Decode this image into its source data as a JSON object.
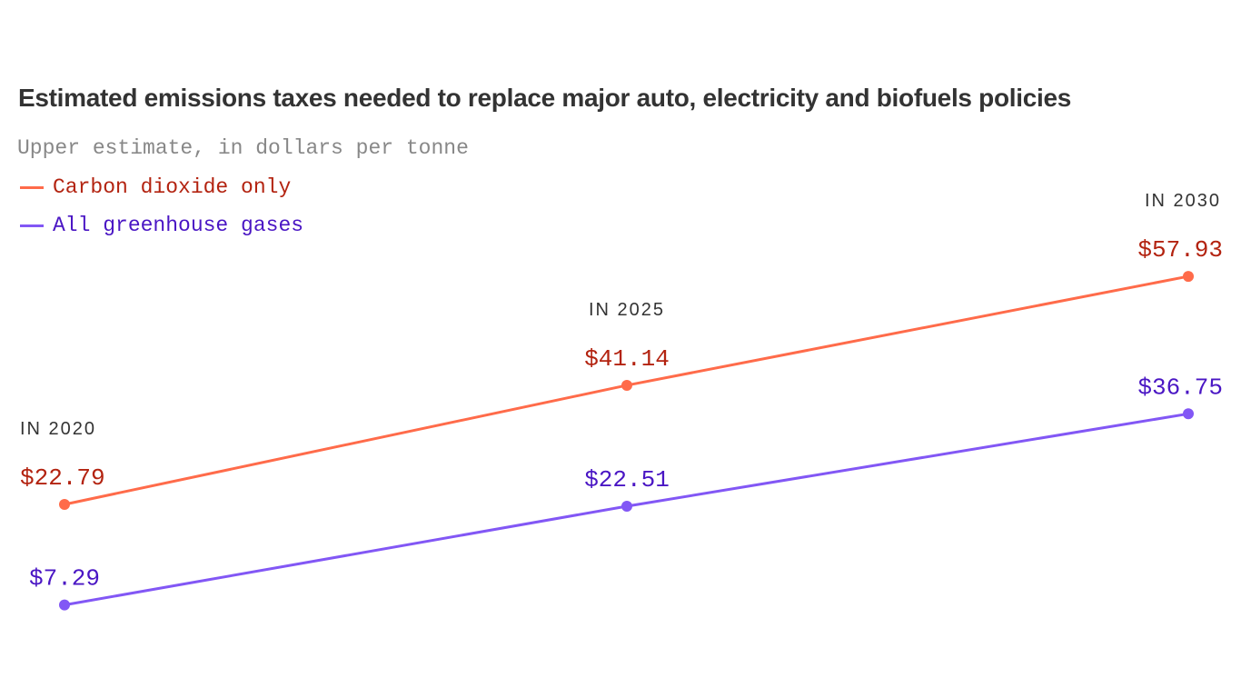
{
  "chart_data": {
    "type": "line",
    "title": "Estimated emissions taxes needed to replace major auto, electricity and biofuels policies",
    "subtitle": "Upper estimate, in dollars per tonne",
    "categories": [
      "IN 2020",
      "IN 2025",
      "IN 2030"
    ],
    "x": [
      2020,
      2025,
      2030
    ],
    "series": [
      {
        "name": "Carbon dioxide only",
        "values": [
          22.79,
          41.14,
          57.93
        ],
        "labels": [
          "$22.79",
          "$41.14",
          "$57.93"
        ],
        "color": "#ff6b4a",
        "label_color": "#b32310"
      },
      {
        "name": "All greenhouse gases",
        "values": [
          7.29,
          22.51,
          36.75
        ],
        "labels": [
          "$7.29",
          "$22.51",
          "$36.75"
        ],
        "color": "#8257f5",
        "label_color": "#4a16c4"
      }
    ],
    "grid": false,
    "legend": "top-left"
  }
}
